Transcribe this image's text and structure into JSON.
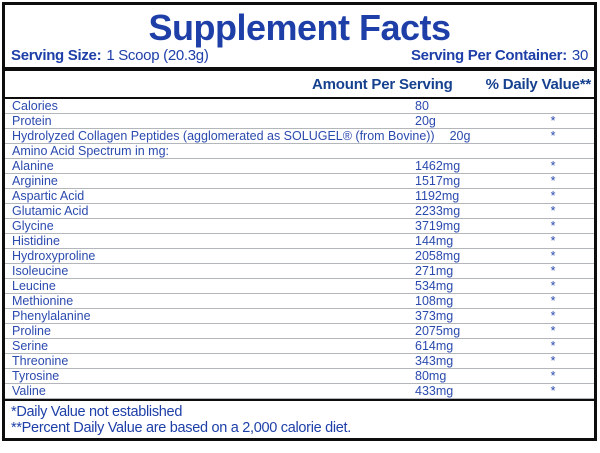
{
  "label": {
    "title": "Supplement Facts",
    "serving": {
      "size_label": "Serving Size:",
      "size_value": "1 Scoop (20.3g)",
      "container_label": "Serving Per Container:",
      "container_value": "30"
    },
    "columns": {
      "amount": "Amount Per Serving",
      "daily_value": "% Daily Value**"
    },
    "table": {
      "rows": [
        {
          "name": "Calories",
          "amount": "80",
          "dv": ""
        },
        {
          "name": "Protein",
          "amount": "20g",
          "dv": "*"
        },
        {
          "name": "Hydrolyzed Collagen Peptides (agglomerated as SOLUGEL® (from Bovine))",
          "inline_amount": "20g",
          "dv": "*"
        },
        {
          "name": "Amino Acid Spectrum in mg:"
        },
        {
          "name": "Alanine",
          "amount": "1462mg",
          "dv": "*"
        },
        {
          "name": "Arginine",
          "amount": "1517mg",
          "dv": "*"
        },
        {
          "name": "Aspartic Acid",
          "amount": "1192mg",
          "dv": "*"
        },
        {
          "name": "Glutamic Acid",
          "amount": "2233mg",
          "dv": "*"
        },
        {
          "name": "Glycine",
          "amount": "3719mg",
          "dv": "*"
        },
        {
          "name": "Histidine",
          "amount": "144mg",
          "dv": "*"
        },
        {
          "name": "Hydroxyproline",
          "amount": "2058mg",
          "dv": "*"
        },
        {
          "name": "Isoleucine",
          "amount": "271mg",
          "dv": "*"
        },
        {
          "name": "Leucine",
          "amount": "534mg",
          "dv": "*"
        },
        {
          "name": "Methionine",
          "amount": "108mg",
          "dv": "*"
        },
        {
          "name": "Phenylalanine",
          "amount": "373mg",
          "dv": "*"
        },
        {
          "name": "Proline",
          "amount": "2075mg",
          "dv": "*"
        },
        {
          "name": "Serine",
          "amount": "614mg",
          "dv": "*"
        },
        {
          "name": "Threonine",
          "amount": "343mg",
          "dv": "*"
        },
        {
          "name": "Tyrosine",
          "amount": "80mg",
          "dv": "*"
        },
        {
          "name": "Valine",
          "amount": "433mg",
          "dv": "*"
        }
      ]
    },
    "footnotes": [
      "*Daily Value not established",
      "**Percent Daily Value are based on a 2,000 calorie diet."
    ],
    "colors": {
      "blue": "#1e3fa8",
      "header_navy": "#16418f",
      "row_blue": "#2b4aae",
      "divider_gray": "#b3b6ba",
      "border_black": "#0d0d0d"
    }
  }
}
